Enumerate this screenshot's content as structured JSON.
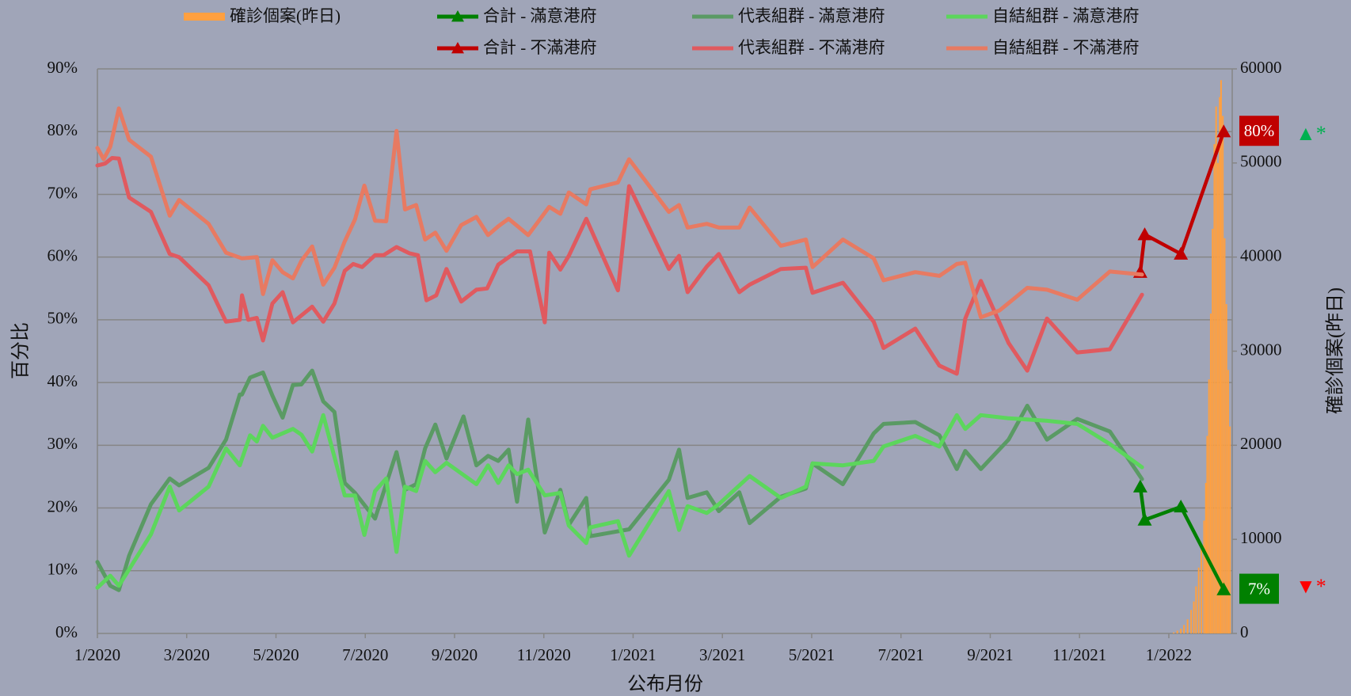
{
  "chart_data": {
    "type": "line",
    "x_label": "公布月份",
    "y_label": "百分比",
    "y2_label": "確診個案(昨日)",
    "xlim": [
      0,
      25.42
    ],
    "xticks": [
      {
        "value": 0,
        "label": "1/2020"
      },
      {
        "value": 2,
        "label": "3/2020"
      },
      {
        "value": 4,
        "label": "5/2020"
      },
      {
        "value": 6,
        "label": "7/2020"
      },
      {
        "value": 8,
        "label": "9/2020"
      },
      {
        "value": 10,
        "label": "11/2020"
      },
      {
        "value": 12,
        "label": "1/2021"
      },
      {
        "value": 14,
        "label": "3/2021"
      },
      {
        "value": 16,
        "label": "5/2021"
      },
      {
        "value": 18,
        "label": "7/2021"
      },
      {
        "value": 20,
        "label": "9/2021"
      },
      {
        "value": 22,
        "label": "11/2021"
      },
      {
        "value": 24,
        "label": "1/2022"
      }
    ],
    "ylim": [
      0,
      90
    ],
    "yticks": [
      {
        "value": 0,
        "label": "0%"
      },
      {
        "value": 10,
        "label": "10%"
      },
      {
        "value": 20,
        "label": "20%"
      },
      {
        "value": 30,
        "label": "30%"
      },
      {
        "value": 40,
        "label": "40%"
      },
      {
        "value": 50,
        "label": "50%"
      },
      {
        "value": 60,
        "label": "60%"
      },
      {
        "value": 70,
        "label": "70%"
      },
      {
        "value": 80,
        "label": "80%"
      },
      {
        "value": 90,
        "label": "90%"
      }
    ],
    "y2lim": [
      0,
      60000
    ],
    "y2ticks": [
      0,
      10000,
      20000,
      30000,
      40000,
      50000,
      60000
    ],
    "grid": true,
    "legend": "top",
    "series": [
      {
        "name": "確診個案(昨日)",
        "type": "bar",
        "axis": "y2",
        "color": "#ffa040",
        "x": [
          24.11,
          24.19,
          24.27,
          24.34,
          24.42,
          24.5,
          24.56,
          24.61,
          24.67,
          24.73,
          24.79,
          24.83,
          24.86,
          24.9,
          24.94,
          24.98,
          25.02,
          25.06,
          25.1,
          25.14,
          25.17,
          25.21,
          25.25,
          25.29,
          25.33,
          25.37
        ],
        "values": [
          100,
          300,
          500,
          900,
          1500,
          2500,
          3400,
          5000,
          7000,
          9000,
          12000,
          16000,
          21000,
          27000,
          34000,
          43000,
          52000,
          56000,
          50000,
          57000,
          58800,
          55000,
          42000,
          35000,
          28000,
          22000
        ]
      },
      {
        "name": "合計 - 滿意港府",
        "color": "#008000",
        "marker": "triangle",
        "x": [
          23.36,
          23.46,
          24.27,
          25.23
        ],
        "values": [
          23.4,
          18.1,
          20.2,
          7
        ],
        "value_labels": [
          null,
          null,
          null,
          "7%"
        ]
      },
      {
        "name": "代表組群 - 滿意港府",
        "color": "#5a9a64",
        "x": [
          0,
          0.29,
          0.48,
          0.71,
          1.2,
          1.62,
          1.83,
          2.49,
          2.88,
          3.19,
          3.24,
          3.42,
          3.71,
          3.92,
          4.15,
          4.38,
          4.57,
          4.81,
          5.06,
          5.31,
          5.54,
          5.77,
          6.22,
          6.7,
          6.89,
          7.14,
          7.34,
          7.57,
          7.82,
          8.2,
          8.49,
          8.75,
          8.98,
          9.21,
          9.4,
          9.65,
          10.02,
          10.37,
          10.56,
          10.95,
          11.04,
          11.91,
          12.8,
          13.03,
          13.22,
          13.65,
          13.92,
          14.38,
          14.61,
          15.31,
          15.87,
          16.02,
          16.7,
          17.39,
          17.61,
          18.32,
          18.86,
          19.25,
          19.44,
          19.79,
          20.41,
          20.83,
          21.27,
          21.95,
          22.68,
          23.4
        ],
        "values": [
          11.4,
          7.6,
          6.9,
          12.4,
          20.6,
          24.7,
          23.6,
          26.4,
          30.9,
          38.1,
          38.1,
          40.8,
          41.6,
          37.9,
          34.4,
          39.6,
          39.7,
          41.9,
          37,
          35.3,
          24,
          22.4,
          18.3,
          28.9,
          22.9,
          23.8,
          29.5,
          33.3,
          27.9,
          34.6,
          26.8,
          28.3,
          27.5,
          29.3,
          21,
          34.1,
          16.1,
          22.9,
          17.3,
          21.6,
          15.5,
          16.6,
          24.5,
          29.3,
          21.6,
          22.5,
          19.5,
          22.5,
          17.6,
          21.8,
          23.1,
          27.1,
          23.8,
          31.9,
          33.4,
          33.7,
          31.6,
          26.2,
          29.1,
          26.2,
          30.9,
          36.3,
          30.9,
          34.2,
          32.2,
          24.6
        ]
      },
      {
        "name": "自結組群 - 滿意港府",
        "color": "#5cd65c",
        "x": [
          0,
          0.29,
          0.48,
          1.2,
          1.62,
          1.83,
          2.49,
          2.88,
          3.19,
          3.42,
          3.57,
          3.71,
          3.92,
          4.38,
          4.57,
          4.81,
          5.06,
          5.54,
          5.77,
          5.98,
          6.22,
          6.47,
          6.7,
          6.89,
          7.14,
          7.34,
          7.57,
          7.82,
          8.49,
          8.75,
          8.98,
          9.21,
          9.4,
          9.65,
          10.02,
          10.37,
          10.56,
          10.95,
          11.04,
          11.66,
          11.91,
          12.8,
          13.03,
          13.22,
          13.65,
          13.92,
          14.61,
          15.31,
          15.87,
          16.02,
          16.7,
          17.39,
          17.61,
          18.32,
          18.86,
          19.25,
          19.44,
          19.79,
          20.41,
          21.27,
          21.95,
          22.68,
          23.4
        ],
        "values": [
          7.3,
          9.2,
          7.6,
          15.8,
          23.4,
          19.6,
          23.4,
          29.5,
          26.8,
          31.6,
          30.6,
          33.1,
          31.2,
          32.6,
          31.7,
          29,
          34.8,
          22,
          22,
          15.7,
          22.7,
          24.7,
          13,
          23.4,
          22.7,
          27.5,
          25.7,
          27.2,
          23.8,
          26.8,
          24,
          26.8,
          25.4,
          26.1,
          22,
          22.4,
          17.2,
          14.4,
          16.9,
          17.9,
          12.4,
          22.7,
          16.5,
          20.3,
          19.2,
          20.6,
          25.1,
          21.6,
          23.4,
          27.1,
          26.8,
          27.5,
          29.8,
          31.5,
          29.8,
          34.8,
          32.6,
          34.8,
          34.3,
          33.9,
          33.4,
          30.2,
          26.5
        ]
      },
      {
        "name": "合計 - 不滿港府",
        "color": "#c00000",
        "marker": "triangle",
        "x": [
          23.36,
          23.46,
          24.27,
          25.23
        ],
        "values": [
          57.6,
          63.6,
          60.5,
          80
        ],
        "value_labels": [
          null,
          null,
          null,
          "80%"
        ]
      },
      {
        "name": "代表組群 - 不滿港府",
        "color": "#e05a5f",
        "x": [
          0,
          0.17,
          0.33,
          0.48,
          0.71,
          1.2,
          1.62,
          1.83,
          2.49,
          2.88,
          3.19,
          3.24,
          3.38,
          3.57,
          3.71,
          3.92,
          4.15,
          4.38,
          4.81,
          5.06,
          5.31,
          5.54,
          5.73,
          5.93,
          6.22,
          6.41,
          6.7,
          6.99,
          7.18,
          7.37,
          7.59,
          7.82,
          8.15,
          8.49,
          8.73,
          8.98,
          9.4,
          9.69,
          10.02,
          10.12,
          10.37,
          10.56,
          10.95,
          11.66,
          11.91,
          12.8,
          13.03,
          13.22,
          13.65,
          13.92,
          14.38,
          14.61,
          15.31,
          15.87,
          16.02,
          16.7,
          17.39,
          17.61,
          18.32,
          18.86,
          19.25,
          19.44,
          19.79,
          20.41,
          20.83,
          21.27,
          21.95,
          22.68,
          23.4
        ],
        "values": [
          74.6,
          74.9,
          75.8,
          75.7,
          69.5,
          67.2,
          60.5,
          60,
          55.5,
          49.7,
          50,
          53.9,
          50,
          50.3,
          46.7,
          52.6,
          54.4,
          49.6,
          52.1,
          49.7,
          52.6,
          57.8,
          58.9,
          58.4,
          60.3,
          60.3,
          61.6,
          60.6,
          60.3,
          53.1,
          53.9,
          58.1,
          52.9,
          54.8,
          55,
          58.8,
          60.9,
          60.9,
          49.6,
          60.7,
          58,
          60.2,
          66.1,
          54.7,
          71.3,
          58.1,
          60.2,
          54.4,
          58.5,
          60.5,
          54.4,
          55.6,
          58.1,
          58.3,
          54.3,
          55.9,
          49.7,
          45.5,
          48.6,
          42.7,
          41.4,
          50.2,
          56.2,
          46.3,
          41.9,
          50.2,
          44.8,
          45.3,
          54
        ]
      },
      {
        "name": "自結組群 - 不滿港府",
        "color": "#e77a62",
        "x": [
          0,
          0.14,
          0.29,
          0.48,
          0.71,
          1.2,
          1.62,
          1.83,
          2.49,
          2.88,
          3.24,
          3.57,
          3.71,
          3.92,
          4.15,
          4.38,
          4.57,
          4.81,
          5.06,
          5.31,
          5.54,
          5.77,
          5.98,
          6.22,
          6.47,
          6.7,
          6.89,
          7.14,
          7.34,
          7.57,
          7.82,
          8.15,
          8.49,
          8.75,
          8.98,
          9.21,
          9.4,
          9.65,
          10.12,
          10.37,
          10.56,
          10.95,
          11.04,
          11.66,
          11.91,
          12.8,
          13.03,
          13.22,
          13.65,
          13.92,
          14.38,
          14.61,
          15.31,
          15.87,
          16.02,
          16.7,
          17.39,
          17.61,
          18.32,
          18.86,
          19.25,
          19.44,
          19.79,
          20.21,
          20.83,
          21.27,
          21.95,
          22.68,
          23.4
        ],
        "values": [
          77.4,
          75.6,
          77.6,
          83.7,
          78.7,
          76,
          66.6,
          69.1,
          65.3,
          60.7,
          59.8,
          60,
          54.1,
          59.5,
          57.6,
          56.6,
          59.4,
          61.7,
          55.6,
          58.3,
          62.5,
          66,
          71.4,
          65.8,
          65.7,
          80.1,
          67.6,
          68.3,
          62.8,
          63.9,
          61,
          65.1,
          66.4,
          63.5,
          64.9,
          66.1,
          65,
          63.5,
          68,
          66.9,
          70.3,
          68.4,
          70.8,
          71.9,
          75.6,
          67.2,
          68.3,
          64.7,
          65.3,
          64.7,
          64.7,
          67.9,
          61.8,
          62.8,
          58.4,
          62.8,
          59.8,
          56.3,
          57.6,
          57,
          58.9,
          59.1,
          50.4,
          51.5,
          55.1,
          54.8,
          53.2,
          57.7,
          57.2
        ]
      }
    ],
    "annotations": [
      {
        "text": "▲*",
        "color": "#00b050"
      },
      {
        "text": "▼*",
        "color": "#ff0000"
      }
    ]
  }
}
